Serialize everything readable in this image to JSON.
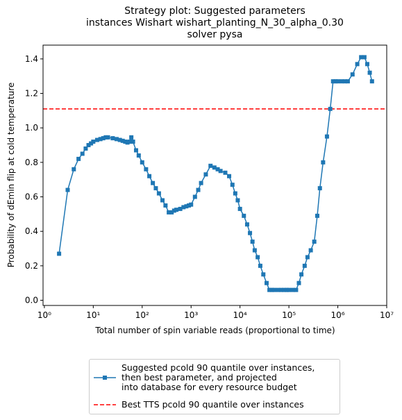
{
  "chart_data": {
    "type": "line",
    "title": "Strategy plot: Suggested parameters\ninstances Wishart wishart_planting_N_30_alpha_0.30\nsolver pysa",
    "x_label": "Total number of spin variable reads (proportional to time)",
    "y_label": "Probability of dEmin flip at cold temperature",
    "x": [
      2,
      3,
      4,
      5,
      6,
      7,
      8,
      9,
      10,
      12,
      14,
      16,
      18,
      20,
      25,
      30,
      35,
      40,
      45,
      50,
      55,
      60,
      65,
      75,
      85,
      100,
      120,
      140,
      165,
      190,
      220,
      260,
      300,
      350,
      400,
      450,
      500,
      600,
      700,
      800,
      900,
      1000,
      1200,
      1400,
      1600,
      2000,
      2500,
      3000,
      3500,
      4000,
      5000,
      6000,
      7000,
      8000,
      9000,
      10000,
      12000,
      14000,
      16000,
      18000,
      20000,
      23000,
      26000,
      30000,
      35000,
      40000,
      45000,
      50000,
      60000,
      70000,
      80000,
      90000,
      100000,
      120000,
      140000,
      160000,
      180000,
      210000,
      240000,
      280000,
      330000,
      380000,
      430000,
      500000,
      600000,
      700000,
      800000,
      900000,
      1000000,
      1200000,
      1400000,
      1600000,
      2000000,
      2500000,
      3000000,
      3500000,
      4000000,
      4500000,
      5000000
    ],
    "series": [
      {
        "name": "Suggested pcold 90 quantile over instances,\n  then best parameter, and projected\n  into database for every resource budget",
        "color": "#1f77b4",
        "values": [
          0.27,
          0.64,
          0.76,
          0.82,
          0.85,
          0.88,
          0.9,
          0.91,
          0.92,
          0.93,
          0.935,
          0.94,
          0.945,
          0.945,
          0.94,
          0.935,
          0.93,
          0.925,
          0.92,
          0.915,
          0.92,
          0.945,
          0.92,
          0.87,
          0.84,
          0.8,
          0.76,
          0.72,
          0.68,
          0.65,
          0.62,
          0.58,
          0.55,
          0.51,
          0.51,
          0.52,
          0.525,
          0.53,
          0.54,
          0.545,
          0.55,
          0.555,
          0.6,
          0.64,
          0.68,
          0.73,
          0.78,
          0.77,
          0.76,
          0.75,
          0.74,
          0.72,
          0.67,
          0.62,
          0.58,
          0.53,
          0.49,
          0.44,
          0.39,
          0.34,
          0.29,
          0.25,
          0.2,
          0.15,
          0.1,
          0.06,
          0.06,
          0.06,
          0.06,
          0.06,
          0.06,
          0.06,
          0.06,
          0.06,
          0.06,
          0.1,
          0.15,
          0.2,
          0.25,
          0.29,
          0.34,
          0.49,
          0.65,
          0.8,
          0.95,
          1.11,
          1.27,
          1.27,
          1.27,
          1.27,
          1.27,
          1.27,
          1.31,
          1.37,
          1.41,
          1.41,
          1.37,
          1.32,
          1.27
        ]
      }
    ],
    "reference_lines": [
      {
        "name": "Best TTS pcold 90 quantile over instances",
        "value": 1.11,
        "color": "#ff0000"
      }
    ],
    "x_log_scale": true,
    "xlim": [
      0.94,
      10000000
    ],
    "xticks": [
      {
        "value": 1,
        "label": "10⁰"
      },
      {
        "value": 10,
        "label": "10¹"
      },
      {
        "value": 100,
        "label": "10²"
      },
      {
        "value": 1000,
        "label": "10³"
      },
      {
        "value": 10000,
        "label": "10⁴"
      },
      {
        "value": 100000,
        "label": "10⁵"
      },
      {
        "value": 1000000,
        "label": "10⁶"
      },
      {
        "value": 10000000,
        "label": "10⁷"
      }
    ],
    "ylim": [
      -0.03,
      1.48
    ],
    "yticks": [
      {
        "value": 0,
        "label": "0.0"
      },
      {
        "value": 0.2,
        "label": "0.2"
      },
      {
        "value": 0.4,
        "label": "0.4"
      },
      {
        "value": 0.6,
        "label": "0.6"
      },
      {
        "value": 0.8,
        "label": "0.8"
      },
      {
        "value": 1,
        "label": "1.0"
      },
      {
        "value": 1.2,
        "label": "1.2"
      },
      {
        "value": 1.4,
        "label": "1.4"
      }
    ]
  }
}
